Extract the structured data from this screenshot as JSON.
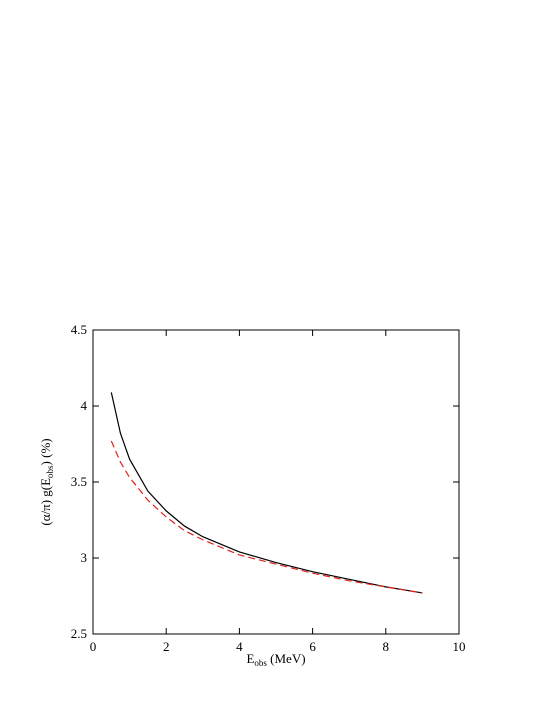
{
  "chart_data": {
    "type": "line",
    "x_label": [
      "E",
      "obs",
      " (MeV)"
    ],
    "y_label": [
      "(α/π) g(E",
      "obs",
      ") (%)"
    ],
    "x": [
      0.5,
      0.75,
      1,
      1.5,
      2,
      2.5,
      3,
      4,
      5,
      6,
      7,
      8,
      9
    ],
    "series": [
      {
        "color": "#000000",
        "dashed": false,
        "values": [
          4.09,
          3.82,
          3.65,
          3.44,
          3.31,
          3.21,
          3.14,
          3.04,
          2.97,
          2.91,
          2.86,
          2.81,
          2.77
        ]
      },
      {
        "color": "#e0221a",
        "dashed": true,
        "values": [
          3.77,
          3.63,
          3.53,
          3.38,
          3.27,
          3.18,
          3.12,
          3.02,
          2.96,
          2.9,
          2.85,
          2.81,
          2.77
        ]
      }
    ],
    "xlim": [
      0,
      10
    ],
    "xticks": [
      0,
      2,
      4,
      6,
      8,
      10
    ],
    "ylim": [
      2.5,
      4.5
    ],
    "yticks": [
      2.5,
      3,
      3.5,
      4,
      4.5
    ],
    "grid": false
  }
}
